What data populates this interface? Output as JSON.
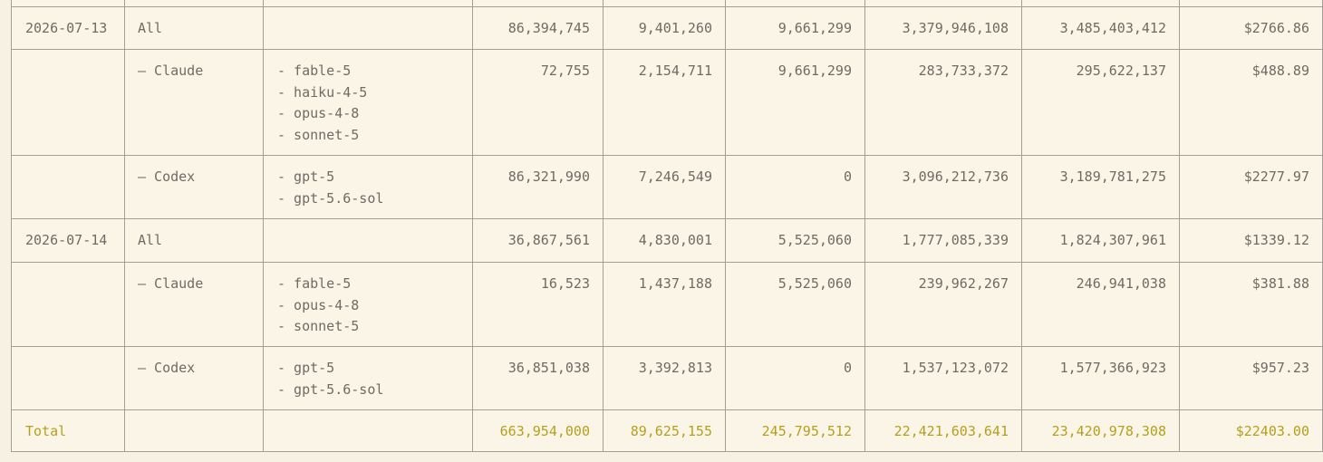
{
  "table": {
    "rows": [
      {
        "date": "2026-07-13",
        "provider": "All",
        "values": [
          "86,394,745",
          "9,401,260",
          "9,661,299",
          "3,379,946,108",
          "3,485,403,412",
          "$2766.86"
        ]
      },
      {
        "provider": "– Claude",
        "models": [
          "- fable-5",
          "- haiku-4-5",
          "- opus-4-8",
          "- sonnet-5"
        ],
        "values": [
          "72,755",
          "2,154,711",
          "9,661,299",
          "283,733,372",
          "295,622,137",
          "$488.89"
        ]
      },
      {
        "provider": "– Codex",
        "models": [
          "- gpt-5",
          "- gpt-5.6-sol"
        ],
        "values": [
          "86,321,990",
          "7,246,549",
          "0",
          "3,096,212,736",
          "3,189,781,275",
          "$2277.97"
        ]
      },
      {
        "date": "2026-07-14",
        "provider": "All",
        "values": [
          "36,867,561",
          "4,830,001",
          "5,525,060",
          "1,777,085,339",
          "1,824,307,961",
          "$1339.12"
        ]
      },
      {
        "provider": "– Claude",
        "models": [
          "- fable-5",
          "- opus-4-8",
          "- sonnet-5"
        ],
        "values": [
          "16,523",
          "1,437,188",
          "5,525,060",
          "239,962,267",
          "246,941,038",
          "$381.88"
        ]
      },
      {
        "provider": "– Codex",
        "models": [
          "- gpt-5",
          "- gpt-5.6-sol"
        ],
        "values": [
          "36,851,038",
          "3,392,813",
          "0",
          "1,537,123,072",
          "1,577,366,923",
          "$957.23"
        ]
      }
    ],
    "total": {
      "date": "Total",
      "values": [
        "663,954,000",
        "89,625,155",
        "245,795,512",
        "22,421,603,641",
        "23,420,978,308",
        "$22403.00"
      ]
    }
  }
}
